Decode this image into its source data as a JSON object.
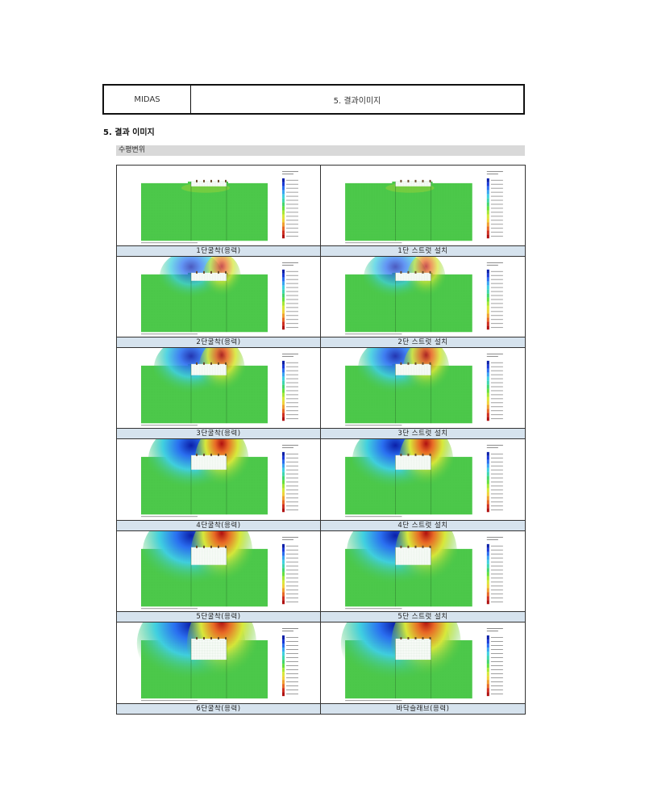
{
  "header": {
    "left": "MIDAS",
    "right": "5. 결과이미지"
  },
  "section_title": "5. 결과 이미지",
  "sub_title": "수평변위",
  "cells": [
    {
      "caption": "1단굴착(응력)",
      "stage": 1,
      "type": "dig"
    },
    {
      "caption": "1단 스트럿 설치",
      "stage": 1,
      "type": "strut"
    },
    {
      "caption": "2단굴착(응력)",
      "stage": 2,
      "type": "dig"
    },
    {
      "caption": "2단 스트럿 설치",
      "stage": 2,
      "type": "strut"
    },
    {
      "caption": "3단굴착(응력)",
      "stage": 3,
      "type": "dig"
    },
    {
      "caption": "3단 스트럿 설치",
      "stage": 3,
      "type": "strut"
    },
    {
      "caption": "4단굴착(응력)",
      "stage": 4,
      "type": "dig"
    },
    {
      "caption": "4단 스트럿 설치",
      "stage": 4,
      "type": "strut"
    },
    {
      "caption": "5단굴착(응력)",
      "stage": 5,
      "type": "dig"
    },
    {
      "caption": "5단 스트럿 설치",
      "stage": 5,
      "type": "strut"
    },
    {
      "caption": "6단굴착(응력)",
      "stage": 6,
      "type": "dig"
    },
    {
      "caption": "바닥슬래브(응력)",
      "stage": 6,
      "type": "slab"
    }
  ],
  "colors": {
    "legend": [
      "#0b1fa8",
      "#1a3ad8",
      "#2a6ff0",
      "#39a6f2",
      "#40d0e0",
      "#3fd6b0",
      "#44d670",
      "#66e040",
      "#a6e838",
      "#d8e83a",
      "#f0d23a",
      "#f0a030",
      "#e86a26",
      "#d03020",
      "#b01010"
    ],
    "base_green": "#4cc94a"
  }
}
